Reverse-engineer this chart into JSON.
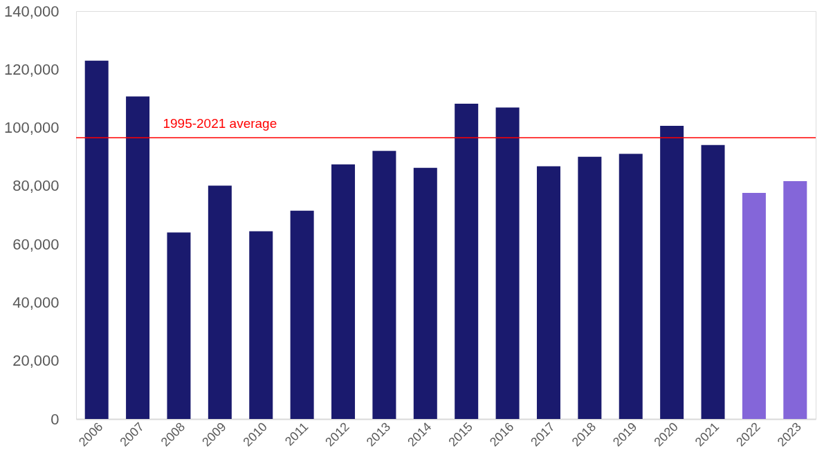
{
  "chart_data": {
    "type": "bar",
    "categories": [
      "2006",
      "2007",
      "2008",
      "2009",
      "2010",
      "2011",
      "2012",
      "2013",
      "2014",
      "2015",
      "2016",
      "2017",
      "2018",
      "2019",
      "2020",
      "2021",
      "2022",
      "2023"
    ],
    "values": [
      123000,
      110700,
      64000,
      80100,
      64400,
      71500,
      87400,
      92000,
      86200,
      108200,
      106900,
      86700,
      90000,
      91000,
      100600,
      94000,
      77600,
      81600
    ],
    "colors": [
      "#1a1a6e",
      "#1a1a6e",
      "#1a1a6e",
      "#1a1a6e",
      "#1a1a6e",
      "#1a1a6e",
      "#1a1a6e",
      "#1a1a6e",
      "#1a1a6e",
      "#1a1a6e",
      "#1a1a6e",
      "#1a1a6e",
      "#1a1a6e",
      "#1a1a6e",
      "#1a1a6e",
      "#1a1a6e",
      "#8466d9",
      "#8466d9"
    ],
    "ylim": [
      0,
      140000
    ],
    "yticks": [
      {
        "value": 0,
        "label": "0"
      },
      {
        "value": 20000,
        "label": "20,000"
      },
      {
        "value": 40000,
        "label": "40,000"
      },
      {
        "value": 60000,
        "label": "60,000"
      },
      {
        "value": 80000,
        "label": "80,000"
      },
      {
        "value": 100000,
        "label": "100,000"
      },
      {
        "value": 120000,
        "label": "120,000"
      },
      {
        "value": 140000,
        "label": "140,000"
      }
    ],
    "ref_lines": [
      {
        "axis": "y",
        "value": 96500,
        "label": "1995-2021 average",
        "color": "#ff0000"
      }
    ],
    "grid": false
  }
}
